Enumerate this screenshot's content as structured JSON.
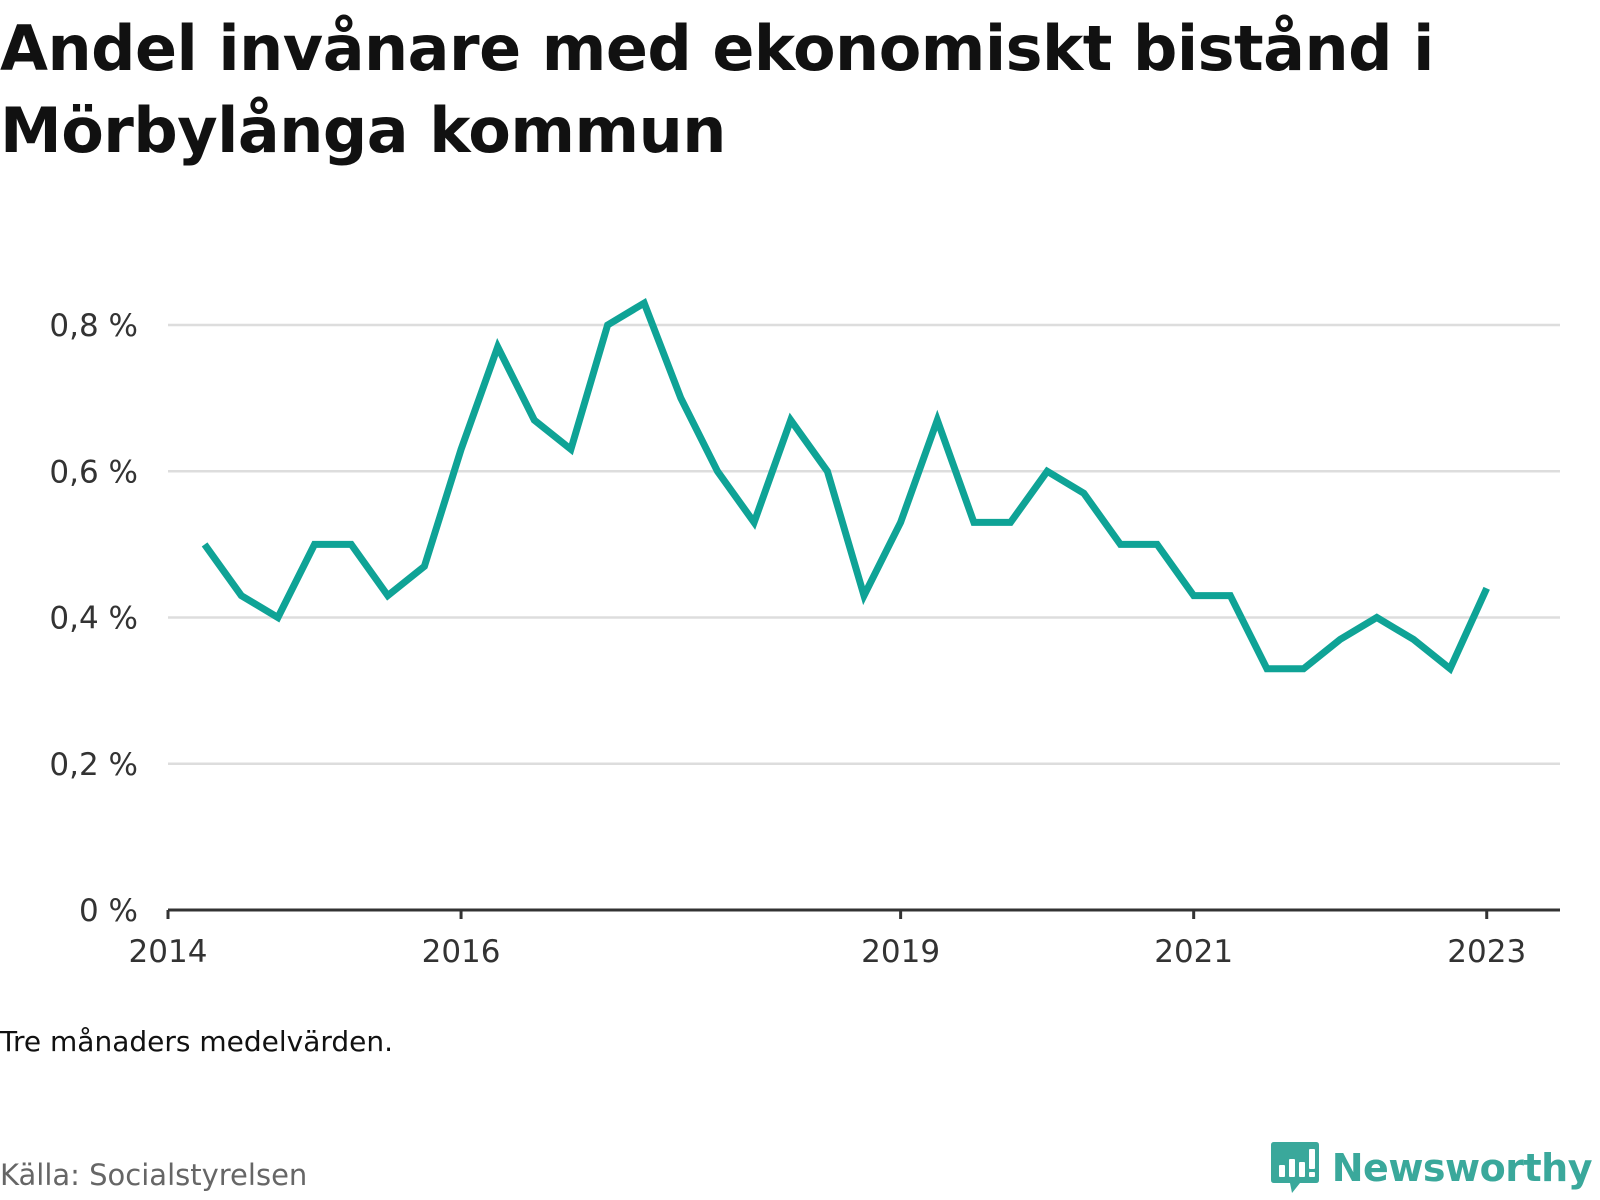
{
  "title": "Andel invånare med ekonomiskt bistånd i Mörbylånga kommun",
  "note": "Tre månaders medelvärden.",
  "source": "Källa: Socialstyrelsen",
  "brand": {
    "name": "Newsworthy",
    "color": "#3aa89b",
    "icon": "bar-chart-speech-bubble-icon"
  },
  "chart_data": {
    "type": "line",
    "title": "Andel invånare med ekonomiskt bistånd i Mörbylånga kommun",
    "xlabel": "",
    "ylabel": "",
    "line_color": "#0fa396",
    "grid": true,
    "ylim": [
      0,
      0.8
    ],
    "y_ticks": [
      {
        "value": 0,
        "label": "0 %"
      },
      {
        "value": 0.2,
        "label": "0,2 %"
      },
      {
        "value": 0.4,
        "label": "0,4 %"
      },
      {
        "value": 0.6,
        "label": "0,6 %"
      },
      {
        "value": 0.8,
        "label": "0,8 %"
      }
    ],
    "x_ticks": [
      {
        "value": "2014-01",
        "label": "2014"
      },
      {
        "value": "2016-01",
        "label": "2016"
      },
      {
        "value": "2019-01",
        "label": "2019"
      },
      {
        "value": "2021-01",
        "label": "2021"
      },
      {
        "value": "2023-01",
        "label": "2023"
      }
    ],
    "xlim": [
      "2014-01",
      "2023-07"
    ],
    "series": [
      {
        "x": [
          "2014-04",
          "2014-07",
          "2014-10",
          "2015-01",
          "2015-04",
          "2015-07",
          "2015-10",
          "2016-01",
          "2016-04",
          "2016-07",
          "2016-10",
          "2017-01",
          "2017-04",
          "2017-07",
          "2017-10",
          "2018-01",
          "2018-04",
          "2018-07",
          "2018-10",
          "2019-01",
          "2019-04",
          "2019-07",
          "2019-10",
          "2020-01",
          "2020-04",
          "2020-07",
          "2020-10",
          "2021-01",
          "2021-04",
          "2021-07",
          "2021-10",
          "2022-01",
          "2022-04",
          "2022-07",
          "2022-10",
          "2023-01"
        ],
        "values": [
          0.5,
          0.43,
          0.4,
          0.5,
          0.5,
          0.43,
          0.47,
          0.63,
          0.77,
          0.67,
          0.63,
          0.8,
          0.83,
          0.7,
          0.6,
          0.53,
          0.67,
          0.6,
          0.43,
          0.53,
          0.67,
          0.53,
          0.53,
          0.6,
          0.57,
          0.5,
          0.5,
          0.43,
          0.43,
          0.33,
          0.33,
          0.37,
          0.4,
          0.37,
          0.33,
          0.44
        ]
      }
    ]
  }
}
